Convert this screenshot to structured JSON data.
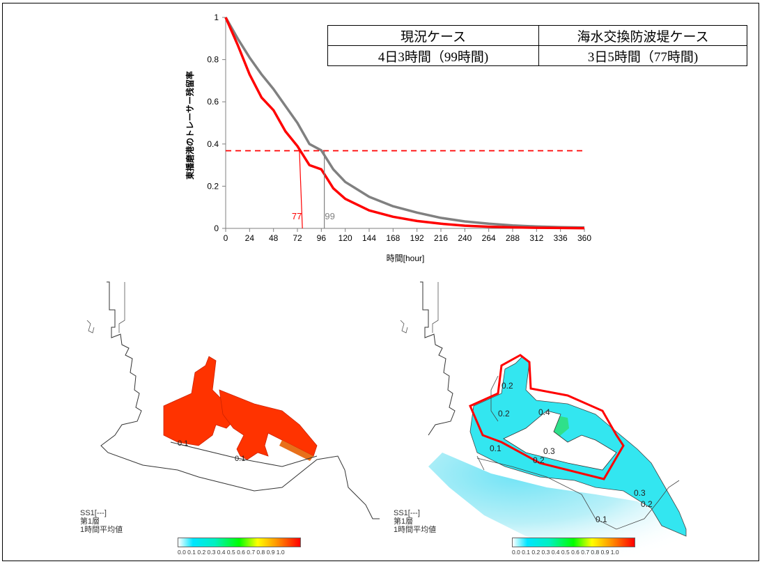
{
  "chart_data": {
    "type": "line",
    "xlabel": "時間[hour]",
    "ylabel": "東播磨港のトレーサー残留率",
    "xlim": [
      0,
      360
    ],
    "ylim": [
      0,
      1
    ],
    "x_ticks": [
      0,
      24,
      48,
      72,
      96,
      120,
      144,
      168,
      192,
      216,
      240,
      264,
      288,
      312,
      336,
      360
    ],
    "y_ticks": [
      0,
      0.2,
      0.4,
      0.6,
      0.8,
      1
    ],
    "y_tick_labels": [
      "0",
      "0.2",
      "0.4",
      "0.6",
      "0.8",
      "1"
    ],
    "series": [
      {
        "color": "#808080",
        "x": [
          0,
          12,
          24,
          36,
          48,
          60,
          72,
          84,
          96,
          108,
          120,
          144,
          168,
          192,
          216,
          240,
          264,
          288,
          312,
          336,
          360
        ],
        "values": [
          1.0,
          0.9,
          0.81,
          0.73,
          0.66,
          0.58,
          0.5,
          0.4,
          0.37,
          0.28,
          0.22,
          0.15,
          0.105,
          0.075,
          0.05,
          0.033,
          0.022,
          0.014,
          0.009,
          0.006,
          0.004
        ]
      },
      {
        "color": "#ff0000",
        "x": [
          0,
          12,
          24,
          36,
          48,
          60,
          72,
          84,
          96,
          108,
          120,
          144,
          168,
          192,
          216,
          240,
          264,
          288,
          312,
          336,
          360
        ],
        "values": [
          1.0,
          0.87,
          0.73,
          0.62,
          0.56,
          0.46,
          0.39,
          0.3,
          0.28,
          0.19,
          0.14,
          0.085,
          0.055,
          0.035,
          0.022,
          0.013,
          0.008,
          0.005,
          0.003,
          0.002,
          0.001
        ]
      }
    ],
    "threshold_line": {
      "y": 0.368,
      "color": "#ff0000",
      "style": "dashed"
    },
    "markers": [
      {
        "x": 77,
        "label": "77",
        "color": "#ff0000"
      },
      {
        "x": 99,
        "label": "99",
        "color": "#808080"
      }
    ],
    "grid": false
  },
  "table": {
    "headers": [
      "現況ケース",
      "海水交換防波堤ケース"
    ],
    "values": [
      "4日3時間（99時間)",
      "3日5時間（77時間)"
    ]
  },
  "maps": [
    {
      "legend_title": "SS1[---]",
      "legend_layer": "第1層",
      "legend_avg": "1時間平均値",
      "contour_labels": [
        "0.1",
        "0.1"
      ],
      "colorbar_labels": "0.0 0.1 0.2 0.3 0.4 0.5 0.6 0.7 0.8 0.9 1.0"
    },
    {
      "legend_title": "SS1[---]",
      "legend_layer": "第1層",
      "legend_avg": "1時間平均値",
      "contour_labels": [
        "0.2",
        "0.2",
        "0.4",
        "0.1",
        "0.2",
        "0.3",
        "0.3",
        "0.2",
        "0.1"
      ],
      "colorbar_labels": "0.0 0.1 0.2 0.3 0.4 0.5 0.6 0.7 0.8 0.9 1.0"
    }
  ]
}
